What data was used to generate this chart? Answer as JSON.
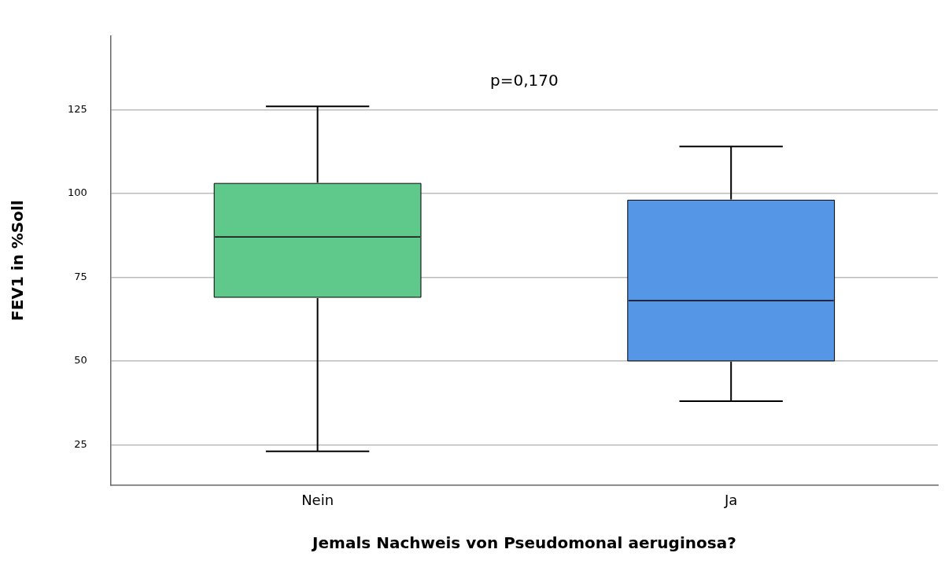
{
  "chart_data": {
    "type": "box",
    "categories": [
      "Nein",
      "Ja"
    ],
    "boxes": [
      {
        "low": 23,
        "q1": 69,
        "median": 87,
        "q3": 103,
        "high": 126
      },
      {
        "low": 38,
        "q1": 50,
        "median": 68,
        "q3": 98,
        "high": 114
      }
    ],
    "colors": [
      "#5ec98a",
      "#5596e6"
    ],
    "xlabel": "Jemals Nachweis von Pseudomonal aeruginosa?",
    "ylabel": "FEV1 in %Soll",
    "annotations": [
      "p=0,170"
    ],
    "ylim": [
      13,
      147
    ],
    "yticks": [
      25,
      50,
      75,
      100,
      125
    ],
    "grid": "y"
  }
}
